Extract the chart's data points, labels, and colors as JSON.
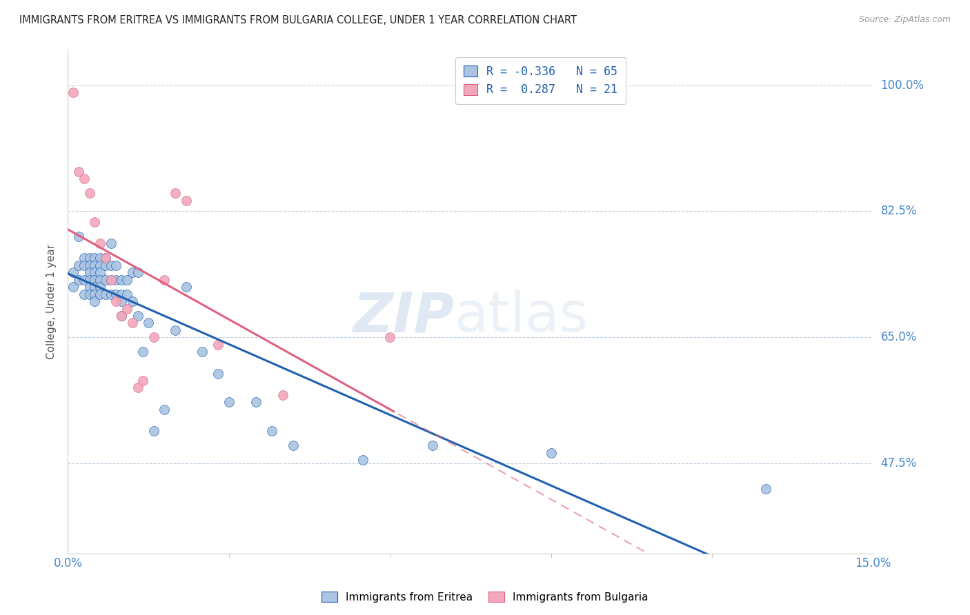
{
  "title": "IMMIGRANTS FROM ERITREA VS IMMIGRANTS FROM BULGARIA COLLEGE, UNDER 1 YEAR CORRELATION CHART",
  "source": "Source: ZipAtlas.com",
  "ylabel": "College, Under 1 year",
  "yticks": [
    0.475,
    0.65,
    0.825,
    1.0
  ],
  "ytick_labels": [
    "47.5%",
    "65.0%",
    "82.5%",
    "100.0%"
  ],
  "xmin": 0.0,
  "xmax": 0.15,
  "ymin": 0.35,
  "ymax": 1.05,
  "eritrea_color": "#aac4e2",
  "bulgaria_color": "#f2a8bc",
  "eritrea_line_color": "#2060b0",
  "bulgaria_line_color": "#e06080",
  "legend_eritrea_r": "-0.336",
  "legend_eritrea_n": "65",
  "legend_bulgaria_r": "0.287",
  "legend_bulgaria_n": "21",
  "eritrea_x": [
    0.001,
    0.001,
    0.002,
    0.002,
    0.002,
    0.003,
    0.003,
    0.003,
    0.003,
    0.004,
    0.004,
    0.004,
    0.004,
    0.004,
    0.004,
    0.005,
    0.005,
    0.005,
    0.005,
    0.005,
    0.005,
    0.005,
    0.006,
    0.006,
    0.006,
    0.006,
    0.006,
    0.006,
    0.007,
    0.007,
    0.007,
    0.007,
    0.008,
    0.008,
    0.008,
    0.008,
    0.009,
    0.009,
    0.009,
    0.01,
    0.01,
    0.01,
    0.01,
    0.011,
    0.011,
    0.012,
    0.012,
    0.013,
    0.013,
    0.014,
    0.015,
    0.016,
    0.018,
    0.02,
    0.022,
    0.025,
    0.028,
    0.03,
    0.035,
    0.038,
    0.042,
    0.055,
    0.068,
    0.09,
    0.13
  ],
  "eritrea_y": [
    0.74,
    0.72,
    0.79,
    0.75,
    0.73,
    0.76,
    0.75,
    0.73,
    0.71,
    0.76,
    0.75,
    0.74,
    0.73,
    0.72,
    0.71,
    0.76,
    0.75,
    0.74,
    0.73,
    0.72,
    0.71,
    0.7,
    0.76,
    0.75,
    0.74,
    0.73,
    0.72,
    0.71,
    0.76,
    0.75,
    0.73,
    0.71,
    0.78,
    0.75,
    0.73,
    0.71,
    0.75,
    0.73,
    0.71,
    0.73,
    0.71,
    0.7,
    0.68,
    0.73,
    0.71,
    0.74,
    0.7,
    0.74,
    0.68,
    0.63,
    0.67,
    0.52,
    0.55,
    0.66,
    0.72,
    0.63,
    0.6,
    0.56,
    0.56,
    0.52,
    0.5,
    0.48,
    0.5,
    0.49,
    0.44
  ],
  "bulgaria_x": [
    0.001,
    0.002,
    0.003,
    0.004,
    0.005,
    0.006,
    0.007,
    0.008,
    0.009,
    0.01,
    0.011,
    0.012,
    0.013,
    0.014,
    0.016,
    0.018,
    0.02,
    0.022,
    0.028,
    0.04,
    0.06
  ],
  "bulgaria_y": [
    0.99,
    0.88,
    0.87,
    0.85,
    0.81,
    0.78,
    0.76,
    0.73,
    0.7,
    0.68,
    0.69,
    0.67,
    0.58,
    0.59,
    0.65,
    0.73,
    0.85,
    0.84,
    0.64,
    0.57,
    0.65
  ],
  "grid_color": "#c0d0e0",
  "background_color": "#ffffff",
  "title_color": "#222222",
  "source_color": "#999999",
  "axis_label_color": "#4488cc",
  "ylabel_color": "#555555"
}
